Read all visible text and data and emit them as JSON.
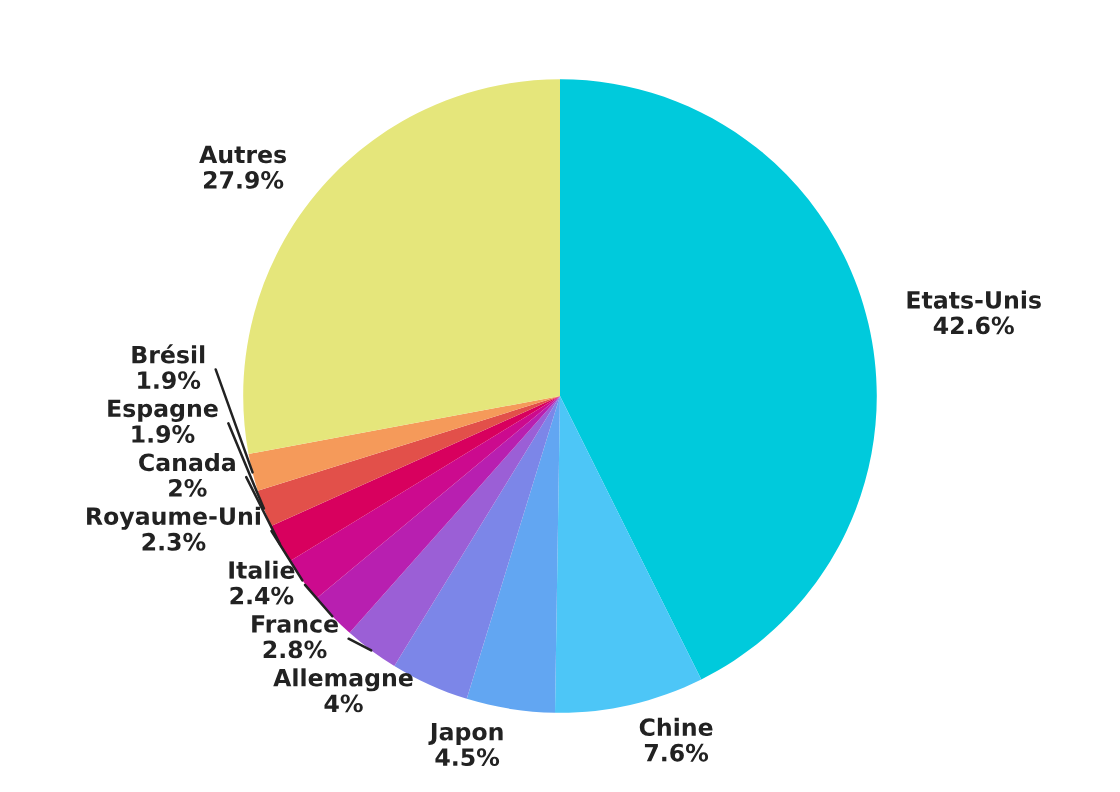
{
  "chart_data": {
    "type": "pie",
    "categories": [
      "Etats-Unis",
      "Chine",
      "Japon",
      "Allemagne",
      "France",
      "Italie",
      "Royaume-Uni",
      "Canada",
      "Espagne",
      "Brésil",
      "Autres"
    ],
    "values": [
      42.6,
      7.6,
      4.5,
      4,
      2.8,
      2.4,
      2.3,
      2,
      1.9,
      1.9,
      27.9
    ],
    "value_labels": [
      "42.6%",
      "7.6%",
      "4.5%",
      "4%",
      "2.8%",
      "2.4%",
      "2.3%",
      "2%",
      "1.9%",
      "1.9%",
      "27.9%"
    ],
    "colors": [
      "#00cadc",
      "#4dc6f7",
      "#62a6f2",
      "#7c86e8",
      "#9b5fd6",
      "#b81fb0",
      "#cc0a8e",
      "#d8005e",
      "#e2504a",
      "#f59a5a",
      "#e5e67b"
    ]
  }
}
